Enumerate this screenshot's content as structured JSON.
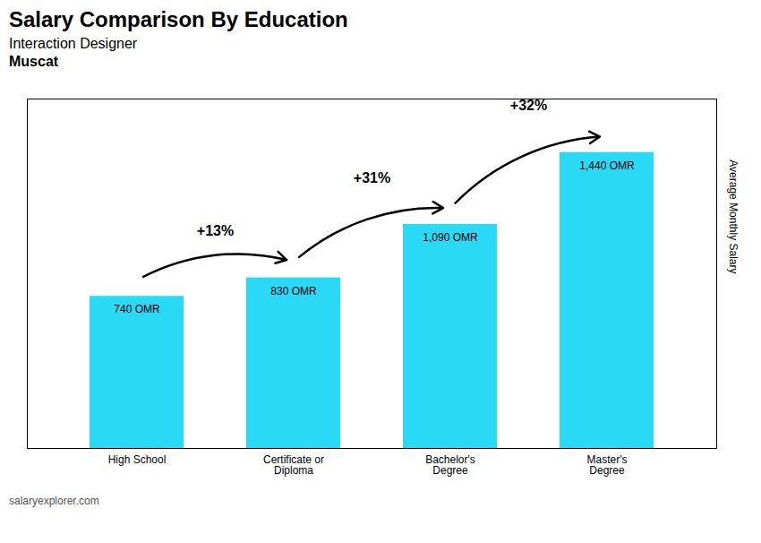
{
  "chart_data": {
    "type": "bar",
    "title": "Salary Comparison By Education",
    "subtitle": [
      "Interaction Designer",
      "Muscat"
    ],
    "caption": "salaryexplorer.com",
    "ylabel": "Average Monthly Salary",
    "categories": [
      "High School",
      "Certificate or\nDiploma",
      "Bachelor's\nDegree",
      "Master's\nDegree"
    ],
    "values": [
      740,
      830,
      1090,
      1440
    ],
    "value_labels": [
      "740 OMR",
      "830 OMR",
      "1,090 OMR",
      "1,440 OMR"
    ],
    "data_labels": true,
    "annotations": [
      "+13%",
      "+31%",
      "+32%"
    ],
    "color": "#29d9f5",
    "ylim": [
      0,
      1700
    ],
    "tick_labels": "x"
  }
}
